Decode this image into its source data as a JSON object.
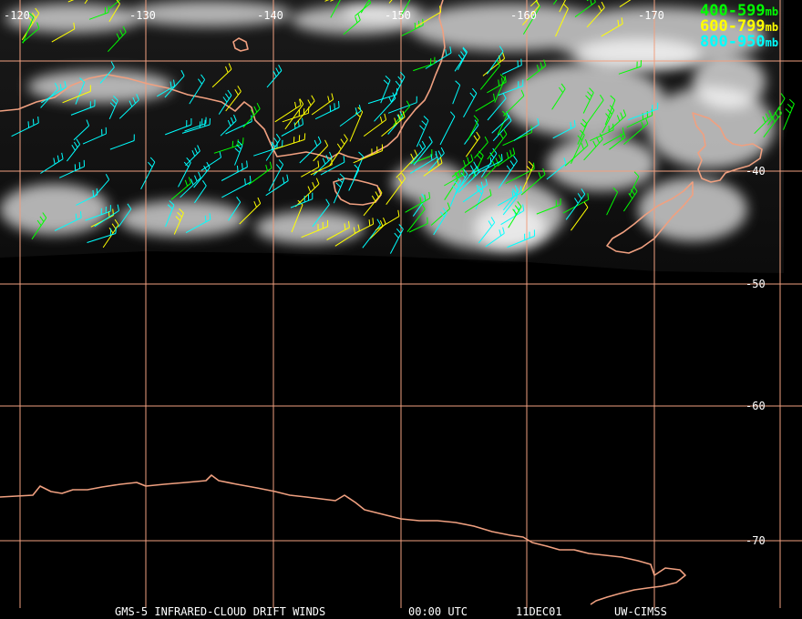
{
  "map": {
    "longitude_labels": [
      "-120",
      "-130",
      "-140",
      "-150",
      "-160",
      "-170"
    ],
    "latitude_labels": [
      "-40",
      "-50",
      "-60",
      "-70"
    ],
    "legend": [
      {
        "range": "400-599",
        "unit": "mb",
        "color": "#00ff00"
      },
      {
        "range": "600-799",
        "unit": "mb",
        "color": "#ffff00"
      },
      {
        "range": "800-950",
        "unit": "mb",
        "color": "#00ffff"
      }
    ],
    "caption": {
      "product": "GMS-5 INFRARED-CLOUD DRIFT WINDS",
      "time": "00:00 UTC",
      "date": "11DEC01",
      "source": "UW-CIMSS"
    },
    "colors": {
      "grid": "#f0a080",
      "coastline": "#f0a080",
      "background": "#000000",
      "clouds": "#e6e6e6"
    }
  }
}
